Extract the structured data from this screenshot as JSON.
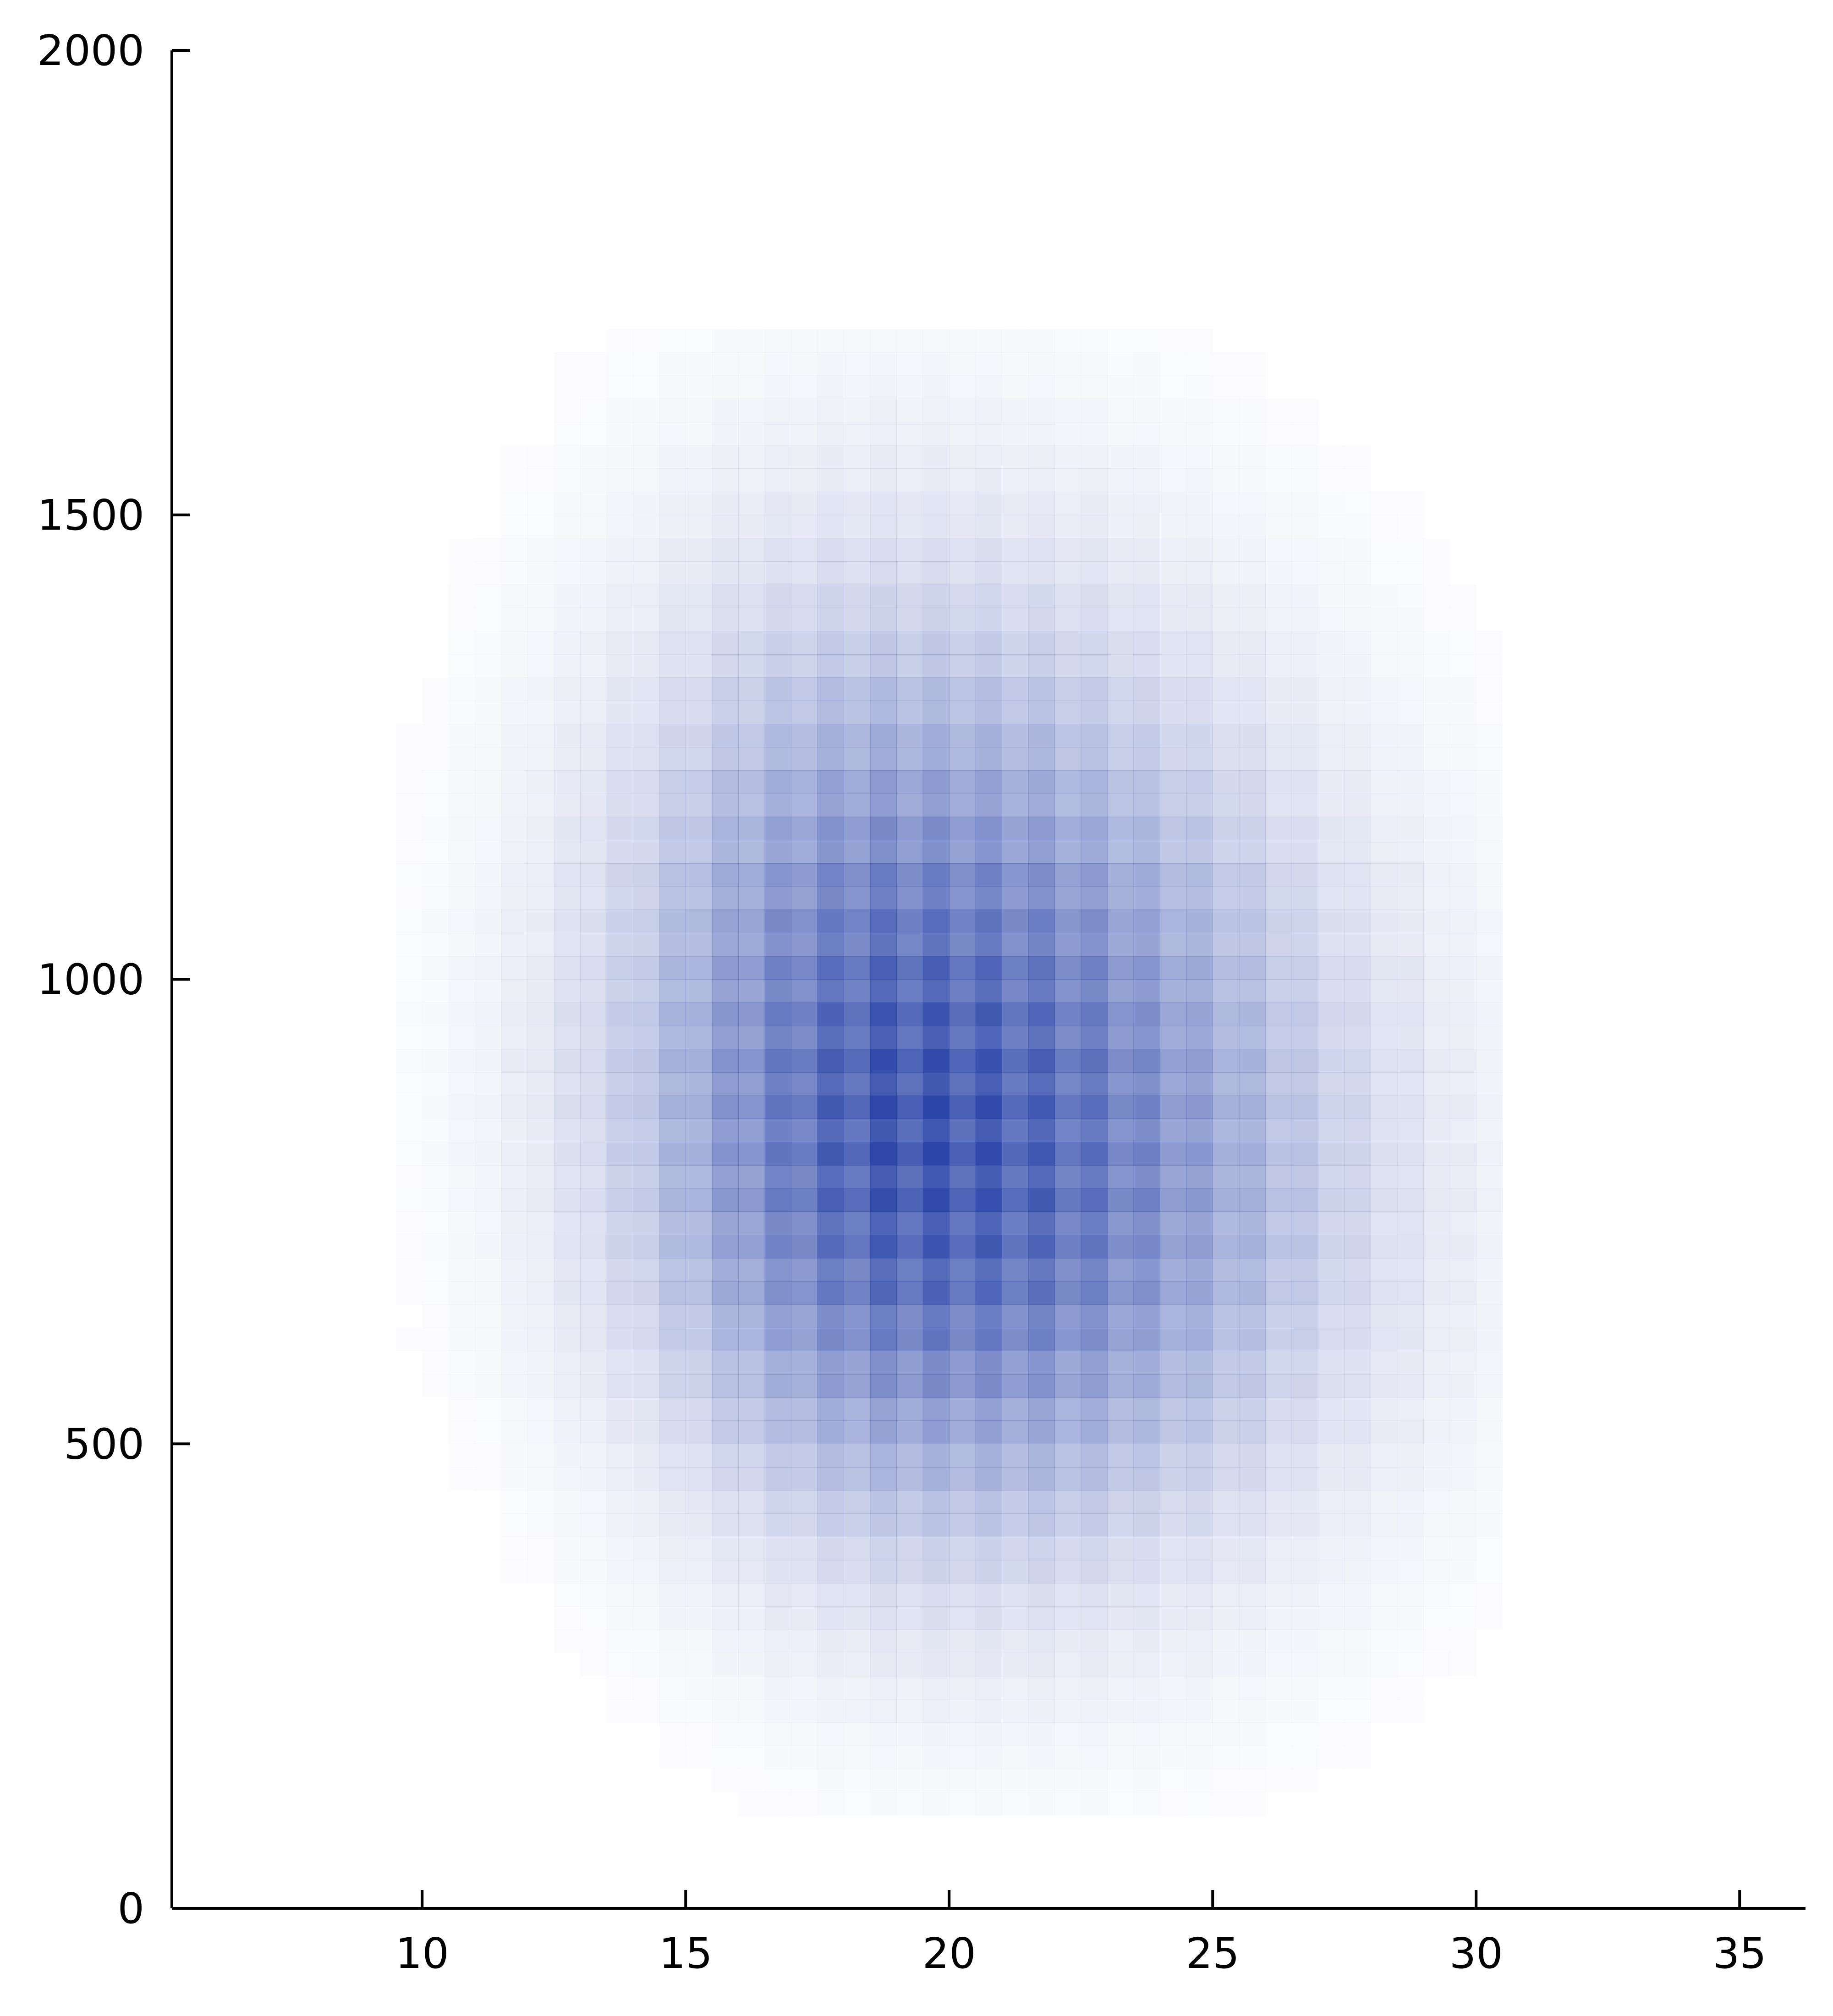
{
  "chart_data": {
    "type": "heatmap",
    "title": "",
    "xlabel": "",
    "ylabel": "",
    "xlim": [
      5.25,
      36.25
    ],
    "ylim": [
      0,
      2000
    ],
    "x_ticks": [
      10,
      15,
      20,
      25,
      30,
      35
    ],
    "y_ticks": [
      0,
      500,
      1000,
      1500,
      2000
    ],
    "grid": false,
    "legend": "none",
    "color": "#2a44a8",
    "background": "#ffffff",
    "bin_width_x": 0.5,
    "bin_height_y": 25,
    "density_model": {
      "description": "2D bivariate histogram density, peak near x=19.5 y=825",
      "peak_x": 19.5,
      "peak_y": 825,
      "sigma_x_left": 3.4,
      "sigma_x_right": 4.6,
      "sigma_y_low": 260,
      "sigma_y_high": 330,
      "x_range": [
        9.5,
        30.5
      ],
      "y_range": [
        100,
        1700
      ]
    }
  }
}
